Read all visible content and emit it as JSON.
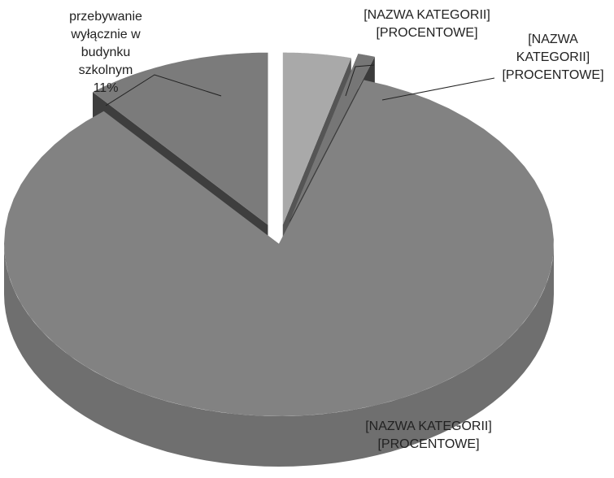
{
  "chart_data": {
    "type": "pie3d",
    "categories": [
      "przebywanie wyłącznie w budynku szkolnym",
      "[NAZWA KATEGORII]",
      "[NAZWA KATEGORII]",
      "[NAZWA KATEGORII]"
    ],
    "values": [
      11,
      4,
      1,
      84
    ],
    "value_labels": [
      "11%",
      "[PROCENTOWE]",
      "[PROCENTOWE]",
      "[PROCENTOWE]"
    ],
    "colors": [
      "#7b7b7b",
      "#a9a9a9",
      "#767676",
      "#828282"
    ]
  }
}
